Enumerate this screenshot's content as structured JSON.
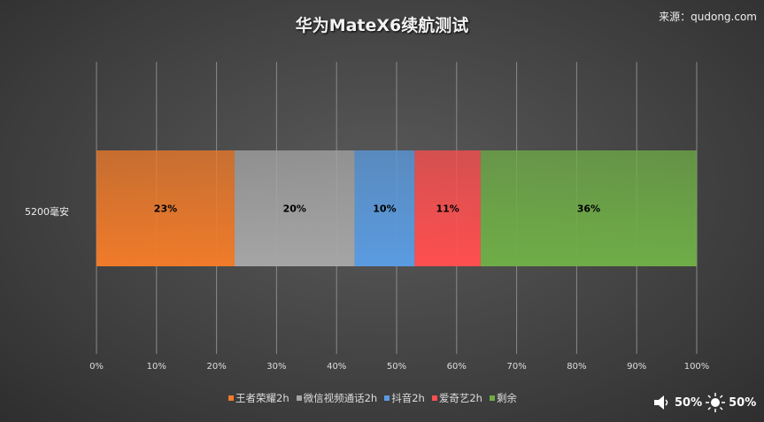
{
  "chart_data": {
    "type": "bar",
    "orientation": "horizontal",
    "stacked": true,
    "title": "华为MateX6续航测试",
    "categories": [
      "5200毫安"
    ],
    "series": [
      {
        "name": "王者荣耀2h",
        "values": [
          23
        ],
        "label": "23%",
        "color": "#f07b2a"
      },
      {
        "name": "微信视频通话2h",
        "values": [
          20
        ],
        "label": "20%",
        "color": "#a5a5a5"
      },
      {
        "name": "抖音2h",
        "values": [
          10
        ],
        "label": "10%",
        "color": "#5a9be0"
      },
      {
        "name": "爱奇艺2h",
        "values": [
          11
        ],
        "label": "11%",
        "color": "#ff4f4f"
      },
      {
        "name": "剩余",
        "values": [
          36
        ],
        "label": "36%",
        "color": "#6fad47"
      }
    ],
    "xlim": [
      0,
      100
    ],
    "xticks": [
      "0%",
      "10%",
      "20%",
      "30%",
      "40%",
      "50%",
      "60%",
      "70%",
      "80%",
      "90%",
      "100%"
    ],
    "grid": true,
    "legend": "bottom"
  },
  "source": "来源：qudong.com",
  "status": {
    "volume": "50%",
    "brightness": "50%",
    "volume_icon": "speaker-icon",
    "brightness_icon": "sun-icon"
  }
}
